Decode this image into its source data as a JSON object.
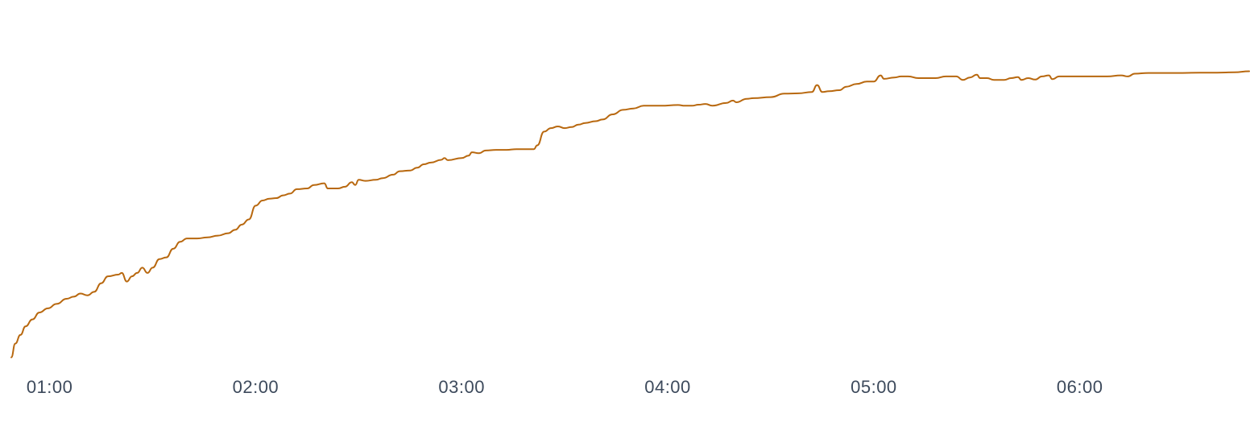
{
  "chart_data": {
    "type": "line",
    "title": "",
    "xlabel": "",
    "ylabel": "",
    "grid": false,
    "legend": "none",
    "line_color": "#b8680f",
    "xlim": [
      "00:48:50",
      "06:49:20"
    ],
    "ylim": [
      0,
      100
    ],
    "x_ticks": [
      "01:00",
      "02:00",
      "03:00",
      "04:00",
      "05:00",
      "06:00"
    ],
    "series": [
      {
        "points": [
          [
            "00:48:50",
            1.0
          ],
          [
            "00:50:00",
            5.0
          ],
          [
            "00:51:30",
            7.5
          ],
          [
            "00:53:00",
            10.0
          ],
          [
            "00:55:00",
            12.0
          ],
          [
            "00:57:00",
            14.0
          ],
          [
            "00:59:30",
            15.2
          ],
          [
            "01:02:00",
            16.5
          ],
          [
            "01:05:00",
            18.0
          ],
          [
            "01:07:00",
            18.6
          ],
          [
            "01:09:00",
            19.5
          ],
          [
            "01:11:00",
            19.0
          ],
          [
            "01:13:00",
            20.0
          ],
          [
            "01:15:00",
            22.5
          ],
          [
            "01:17:00",
            24.5
          ],
          [
            "01:20:00",
            25.0
          ],
          [
            "01:21:00",
            25.5
          ],
          [
            "01:22:30",
            23.0
          ],
          [
            "01:24:00",
            24.5
          ],
          [
            "01:25:30",
            25.5
          ],
          [
            "01:27:00",
            27.0
          ],
          [
            "01:28:30",
            25.5
          ],
          [
            "01:30:00",
            27.0
          ],
          [
            "01:32:00",
            29.5
          ],
          [
            "01:34:00",
            30.0
          ],
          [
            "01:36:00",
            32.5
          ],
          [
            "01:38:00",
            34.5
          ],
          [
            "01:40:00",
            35.5
          ],
          [
            "01:43:00",
            35.5
          ],
          [
            "01:46:00",
            35.8
          ],
          [
            "01:49:00",
            36.3
          ],
          [
            "01:52:00",
            37.0
          ],
          [
            "01:54:00",
            38.0
          ],
          [
            "01:56:00",
            39.5
          ],
          [
            "01:58:00",
            41.0
          ],
          [
            "02:00:00",
            45.0
          ],
          [
            "02:02:00",
            46.5
          ],
          [
            "02:04:00",
            47.0
          ],
          [
            "02:06:00",
            47.2
          ],
          [
            "02:08:00",
            48.0
          ],
          [
            "02:10:00",
            48.5
          ],
          [
            "02:12:00",
            49.8
          ],
          [
            "02:15:00",
            50.0
          ],
          [
            "02:17:00",
            51.0
          ],
          [
            "02:20:00",
            51.5
          ],
          [
            "02:21:00",
            50.0
          ],
          [
            "02:24:00",
            50.0
          ],
          [
            "02:26:00",
            50.5
          ],
          [
            "02:28:00",
            51.8
          ],
          [
            "02:29:00",
            51.0
          ],
          [
            "02:30:00",
            52.5
          ],
          [
            "02:32:00",
            52.2
          ],
          [
            "02:35:00",
            52.5
          ],
          [
            "02:37:00",
            53.0
          ],
          [
            "02:40:00",
            54.0
          ],
          [
            "02:42:00",
            55.0
          ],
          [
            "02:45:00",
            55.2
          ],
          [
            "02:47:00",
            56.0
          ],
          [
            "02:49:00",
            57.0
          ],
          [
            "02:51:00",
            57.5
          ],
          [
            "02:54:00",
            58.3
          ],
          [
            "02:55:00",
            58.8
          ],
          [
            "02:56:00",
            58.2
          ],
          [
            "03:00:00",
            58.8
          ],
          [
            "03:02:00",
            59.5
          ],
          [
            "03:03:00",
            60.5
          ],
          [
            "03:05:00",
            60.2
          ],
          [
            "03:07:00",
            61.0
          ],
          [
            "03:10:00",
            61.2
          ],
          [
            "03:13:00",
            61.2
          ],
          [
            "03:16:00",
            61.4
          ],
          [
            "03:21:00",
            61.4
          ],
          [
            "03:22:00",
            62.5
          ],
          [
            "03:24:00",
            66.5
          ],
          [
            "03:26:00",
            67.5
          ],
          [
            "03:28:00",
            68.0
          ],
          [
            "03:30:00",
            67.5
          ],
          [
            "03:32:00",
            67.8
          ],
          [
            "03:34:00",
            68.5
          ],
          [
            "03:36:00",
            69.0
          ],
          [
            "03:39:00",
            69.5
          ],
          [
            "03:41:00",
            70.0
          ],
          [
            "03:44:00",
            71.5
          ],
          [
            "03:47:00",
            72.8
          ],
          [
            "03:50:00",
            73.2
          ],
          [
            "03:53:00",
            74.0
          ],
          [
            "03:55:00",
            74.0
          ],
          [
            "03:58:00",
            74.0
          ],
          [
            "04:03:00",
            74.2
          ],
          [
            "04:05:00",
            74.0
          ],
          [
            "04:07:00",
            74.0
          ],
          [
            "04:09:00",
            74.3
          ],
          [
            "04:11:00",
            74.5
          ],
          [
            "04:13:00",
            74.0
          ],
          [
            "04:17:00",
            74.8
          ],
          [
            "04:19:00",
            75.5
          ],
          [
            "04:20:00",
            75.0
          ],
          [
            "04:23:00",
            76.0
          ],
          [
            "04:25:00",
            76.2
          ],
          [
            "04:30:00",
            76.5
          ],
          [
            "04:34:00",
            77.5
          ],
          [
            "04:38:00",
            77.6
          ],
          [
            "04:42:00",
            78.0
          ],
          [
            "04:43:30",
            80.0
          ],
          [
            "04:45:00",
            78.0
          ],
          [
            "04:47:00",
            78.2
          ],
          [
            "04:50:00",
            78.5
          ],
          [
            "04:52:00",
            79.5
          ],
          [
            "04:55:00",
            80.3
          ],
          [
            "04:58:00",
            81.0
          ],
          [
            "05:00:00",
            81.0
          ],
          [
            "05:02:00",
            82.8
          ],
          [
            "05:03:00",
            81.8
          ],
          [
            "05:06:00",
            82.2
          ],
          [
            "05:08:00",
            82.5
          ],
          [
            "05:10:00",
            82.5
          ],
          [
            "05:13:00",
            82.0
          ],
          [
            "05:18:00",
            82.0
          ],
          [
            "05:21:00",
            82.5
          ],
          [
            "05:24:00",
            82.5
          ],
          [
            "05:26:00",
            81.5
          ],
          [
            "05:28:00",
            82.2
          ],
          [
            "05:30:00",
            83.0
          ],
          [
            "05:31:00",
            82.0
          ],
          [
            "05:33:00",
            82.0
          ],
          [
            "05:35:00",
            81.5
          ],
          [
            "05:38:00",
            81.5
          ],
          [
            "05:40:00",
            82.0
          ],
          [
            "05:42:00",
            82.3
          ],
          [
            "05:43:00",
            81.5
          ],
          [
            "05:45:00",
            82.0
          ],
          [
            "05:47:00",
            81.6
          ],
          [
            "05:49:00",
            82.5
          ],
          [
            "05:51:00",
            82.8
          ],
          [
            "05:52:00",
            81.7
          ],
          [
            "05:54:00",
            82.5
          ],
          [
            "05:58:00",
            82.5
          ],
          [
            "06:03:00",
            82.5
          ],
          [
            "06:08:00",
            82.5
          ],
          [
            "06:12:00",
            82.8
          ],
          [
            "06:14:00",
            82.5
          ],
          [
            "06:16:00",
            83.3
          ],
          [
            "06:20:00",
            83.5
          ],
          [
            "06:25:00",
            83.5
          ],
          [
            "06:30:00",
            83.5
          ],
          [
            "06:35:00",
            83.6
          ],
          [
            "06:40:00",
            83.6
          ],
          [
            "06:45:00",
            83.7
          ],
          [
            "06:49:20",
            84.0
          ]
        ]
      }
    ]
  }
}
